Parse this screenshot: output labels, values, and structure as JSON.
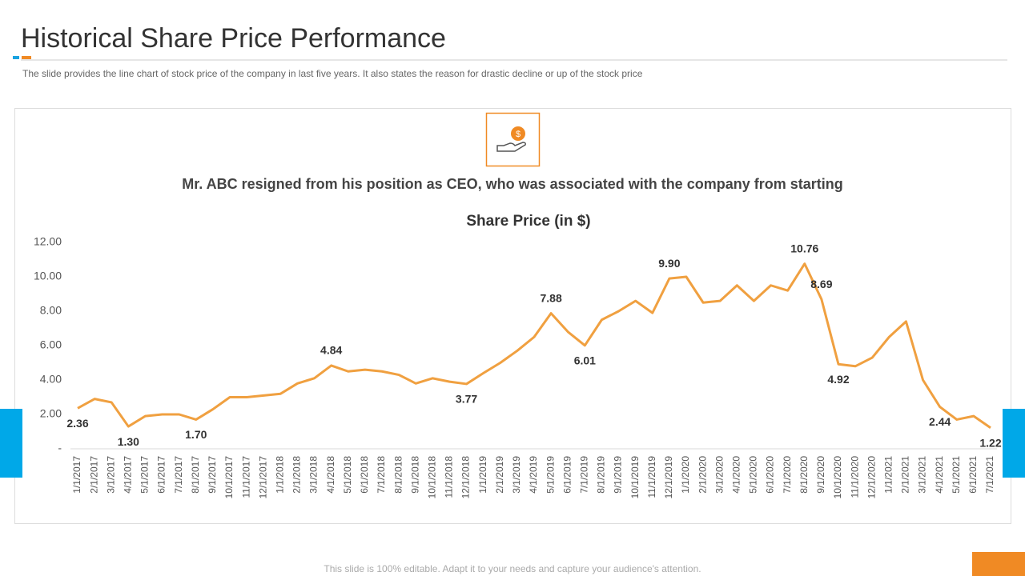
{
  "header": {
    "title": "Historical Share Price Performance",
    "subtitle": "The slide provides  the line chart of stock price of the company in last five  years. It also states the reason for drastic decline or up of the stock price"
  },
  "card": {
    "headline": "Mr. ABC resigned from his position as CEO, who was associated with the company from starting"
  },
  "chart_data": {
    "type": "line",
    "title": "Share Price (in $)",
    "color": "#f0a040",
    "categories": [
      "1/1/2017",
      "2/1/2017",
      "3/1/2017",
      "4/1/2017",
      "5/1/2017",
      "6/1/2017",
      "7/1/2017",
      "8/1/2017",
      "9/1/2017",
      "10/1/2017",
      "11/1/2017",
      "12/1/2017",
      "1/1/2018",
      "2/1/2018",
      "3/1/2018",
      "4/1/2018",
      "5/1/2018",
      "6/1/2018",
      "7/1/2018",
      "8/1/2018",
      "9/1/2018",
      "10/1/2018",
      "11/1/2018",
      "12/1/2018",
      "1/1/2019",
      "2/1/2019",
      "3/1/2019",
      "4/1/2019",
      "5/1/2019",
      "6/1/2019",
      "7/1/2019",
      "8/1/2019",
      "9/1/2019",
      "10/1/2019",
      "11/1/2019",
      "12/1/2019",
      "1/1/2020",
      "2/1/2020",
      "3/1/2020",
      "4/1/2020",
      "5/1/2020",
      "6/1/2020",
      "7/1/2020",
      "8/1/2020",
      "9/1/2020",
      "10/1/2020",
      "11/1/2020",
      "12/1/2020",
      "1/1/2021",
      "2/1/2021",
      "3/1/2021",
      "4/1/2021",
      "5/1/2021",
      "6/1/2021",
      "7/1/2021"
    ],
    "values": [
      2.36,
      2.9,
      2.7,
      1.3,
      1.9,
      2.0,
      2.0,
      1.7,
      2.3,
      3.0,
      3.0,
      3.1,
      3.2,
      3.8,
      4.1,
      4.84,
      4.5,
      4.6,
      4.5,
      4.3,
      3.8,
      4.1,
      3.9,
      3.77,
      4.4,
      5.0,
      5.7,
      6.5,
      7.88,
      6.8,
      6.01,
      7.5,
      8.0,
      8.6,
      7.9,
      9.9,
      10.0,
      8.5,
      8.6,
      9.5,
      8.6,
      9.5,
      9.2,
      10.76,
      8.69,
      4.92,
      4.8,
      5.3,
      6.5,
      7.4,
      4.0,
      2.44,
      1.7,
      1.9,
      1.22
    ],
    "value_labels": [
      "2.36",
      null,
      null,
      "1.30",
      null,
      null,
      null,
      "1.70",
      null,
      null,
      null,
      null,
      null,
      null,
      null,
      "4.84",
      null,
      null,
      null,
      null,
      null,
      null,
      null,
      "3.77",
      null,
      null,
      null,
      null,
      "7.88",
      null,
      "6.01",
      null,
      null,
      null,
      null,
      "9.90",
      null,
      null,
      null,
      null,
      null,
      null,
      null,
      "10.76",
      "8.69",
      "4.92",
      null,
      null,
      null,
      null,
      null,
      "2.44",
      null,
      null,
      "1.22"
    ],
    "ylim": [
      0,
      12
    ],
    "yticks": [
      {
        "value": 0,
        "label": "-"
      },
      {
        "value": 2,
        "label": "2.00"
      },
      {
        "value": 4,
        "label": "4.00"
      },
      {
        "value": 6,
        "label": "6.00"
      },
      {
        "value": 8,
        "label": "8.00"
      },
      {
        "value": 10,
        "label": "10.00"
      },
      {
        "value": 12,
        "label": "12.00"
      }
    ],
    "grid": false
  },
  "footer": {
    "note": "This slide is 100% editable. Adapt it to your needs and capture your audience's attention."
  }
}
